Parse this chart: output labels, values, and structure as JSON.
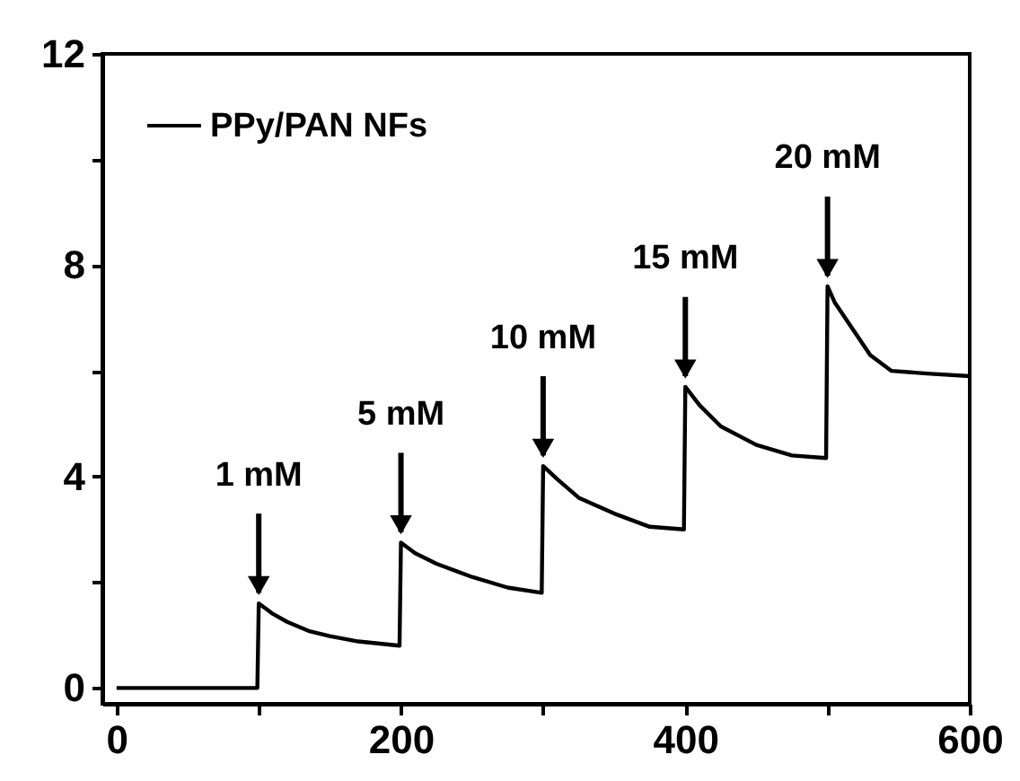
{
  "chart_data": {
    "type": "line",
    "legend": "top left",
    "marker": "none",
    "line_style": "solid",
    "grid": false,
    "xlim": [
      -10,
      600
    ],
    "ylim": [
      -0.3,
      12
    ],
    "xticks": [
      0,
      {
        "value": 100,
        "label": null
      },
      200,
      {
        "value": 300,
        "label": null
      },
      400,
      {
        "value": 500,
        "label": null
      },
      600
    ],
    "yticks": [
      0,
      {
        "value": 2,
        "label": null
      },
      4,
      {
        "value": 6,
        "label": null
      },
      8,
      {
        "value": 10,
        "label": null
      },
      12
    ],
    "x": [
      0,
      50,
      99,
      100,
      105,
      110,
      120,
      135,
      150,
      170,
      199,
      200,
      210,
      225,
      250,
      275,
      299,
      300,
      310,
      325,
      350,
      375,
      399,
      400,
      410,
      425,
      450,
      475,
      499,
      500,
      505,
      515,
      530,
      545,
      570,
      600
    ],
    "series": [
      {
        "name": "PPy/PAN NFs",
        "color": "#000000",
        "values": [
          0,
          0,
          0,
          1.6,
          1.5,
          1.4,
          1.25,
          1.08,
          0.98,
          0.88,
          0.8,
          2.75,
          2.55,
          2.35,
          2.1,
          1.9,
          1.8,
          4.2,
          3.95,
          3.6,
          3.3,
          3.05,
          3.0,
          5.7,
          5.35,
          4.95,
          4.6,
          4.4,
          4.35,
          7.6,
          7.3,
          6.9,
          6.3,
          6.0,
          5.95,
          5.9
        ]
      }
    ],
    "annotations": [
      {
        "text": "1 mM",
        "x": 100,
        "y": 1.6
      },
      {
        "text": "5 mM",
        "x": 200,
        "y": 2.75
      },
      {
        "text": "10 mM",
        "x": 300,
        "y": 4.2
      },
      {
        "text": "15 mM",
        "x": 400,
        "y": 5.7
      },
      {
        "text": "20 mM",
        "x": 500,
        "y": 7.6
      }
    ]
  }
}
